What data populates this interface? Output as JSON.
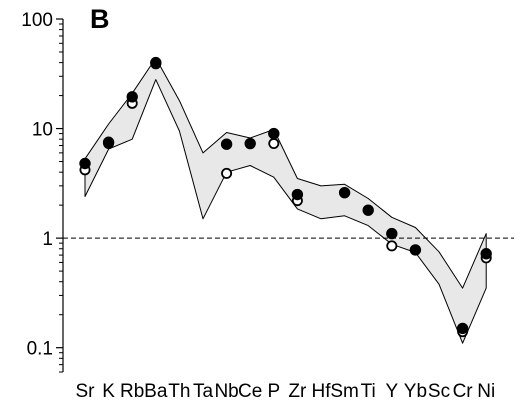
{
  "chart_data": {
    "type": "line",
    "title": "B",
    "xlabel": "",
    "ylabel": "",
    "y_scale": "log",
    "ylim": [
      0.06,
      100
    ],
    "grid": false,
    "legend": "none",
    "categories": [
      "Sr",
      "K",
      "Rb",
      "Ba",
      "Th",
      "Ta",
      "Nb",
      "Ce",
      "P",
      "Zr",
      "Hf",
      "Sm",
      "Ti",
      "Y",
      "Yb",
      "Sc",
      "Cr",
      "Ni"
    ],
    "yticks": [
      0.1,
      1,
      10,
      100
    ],
    "ytick_labels": [
      "0.1",
      "1",
      "10",
      "100"
    ],
    "reference_line": {
      "y": 1,
      "style": "dashed"
    },
    "band": {
      "fill": "#e8e8e8",
      "stroke": "#000000",
      "upper": [
        5.3,
        11,
        21,
        44,
        18,
        6,
        9.2,
        8.2,
        9.8,
        3.5,
        3.0,
        3.1,
        2.3,
        1.55,
        1.25,
        0.75,
        0.35,
        1.1
      ],
      "lower": [
        2.4,
        6.5,
        8.0,
        28,
        9.5,
        1.5,
        4.0,
        4.6,
        3.6,
        1.85,
        1.5,
        1.6,
        1.3,
        0.88,
        0.74,
        0.38,
        0.11,
        0.35
      ]
    },
    "series": [
      {
        "marker": "filled-circle",
        "color": "#000000",
        "points": [
          {
            "x": "Sr",
            "y": 4.8
          },
          {
            "x": "K",
            "y": 7.5
          },
          {
            "x": "Rb",
            "y": 19.5
          },
          {
            "x": "Ba",
            "y": 40
          },
          {
            "x": "Nb",
            "y": 7.2
          },
          {
            "x": "Ce",
            "y": 7.3
          },
          {
            "x": "P",
            "y": 9.0
          },
          {
            "x": "Zr",
            "y": 2.5
          },
          {
            "x": "Sm",
            "y": 2.6
          },
          {
            "x": "Ti",
            "y": 1.8
          },
          {
            "x": "Y",
            "y": 1.1
          },
          {
            "x": "Yb",
            "y": 0.78
          },
          {
            "x": "Cr",
            "y": 0.15
          },
          {
            "x": "Ni",
            "y": 0.72
          }
        ]
      },
      {
        "marker": "open-circle",
        "color": "#000000",
        "points": [
          {
            "x": "Sr",
            "y": 4.2
          },
          {
            "x": "K",
            "y": 7.3
          },
          {
            "x": "Rb",
            "y": 17
          },
          {
            "x": "Ba",
            "y": 39
          },
          {
            "x": "Nb",
            "y": 3.9
          },
          {
            "x": "P",
            "y": 7.3
          },
          {
            "x": "Zr",
            "y": 2.2
          },
          {
            "x": "Y",
            "y": 0.85
          },
          {
            "x": "Cr",
            "y": 0.14
          },
          {
            "x": "Ni",
            "y": 0.66
          }
        ]
      }
    ]
  }
}
